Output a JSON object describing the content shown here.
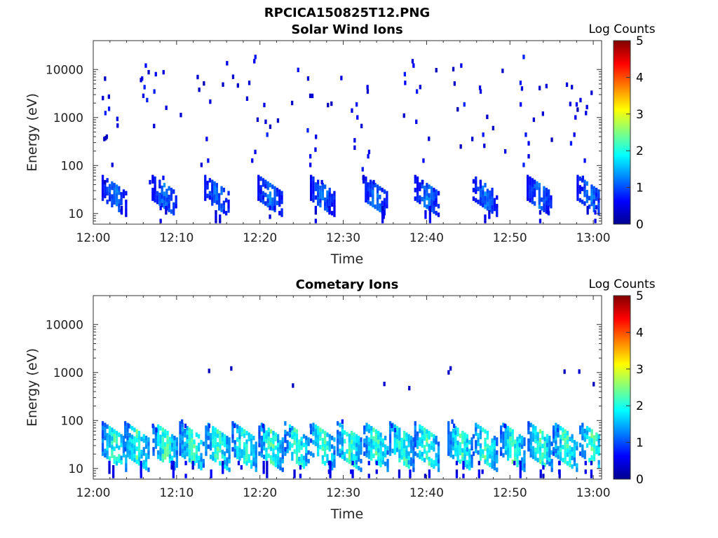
{
  "header": {
    "title": "RPCICA150825T12.PNG"
  },
  "colors": {
    "colormap": [
      "#00008f",
      "#0000ff",
      "#0080ff",
      "#00ffff",
      "#80ff80",
      "#ffff00",
      "#ff8000",
      "#ff0000",
      "#800000"
    ]
  },
  "chart_data": [
    {
      "type": "heatmap",
      "title": "Solar Wind Ions",
      "xlabel": "Time",
      "ylabel": "Energy (eV)",
      "y_scale": "log",
      "x_range": [
        "12:00",
        "13:01"
      ],
      "ylim": [
        6,
        40000
      ],
      "x_ticks": [
        "12:00",
        "12:10",
        "12:20",
        "12:30",
        "12:40",
        "12:50",
        "13:00"
      ],
      "y_ticks": [
        "10",
        "100",
        "1000",
        "10000"
      ],
      "colorbar": {
        "label": "Log Counts",
        "ticks": [
          "0",
          "1",
          "2",
          "3",
          "4",
          "5"
        ],
        "range": [
          0,
          5
        ]
      },
      "sweep_minutes": [
        2.5,
        8.5,
        14.8,
        21.2,
        27.5,
        33.8,
        40.0,
        47.0,
        53.5,
        59.5
      ],
      "core_energy_ev": [
        15,
        50
      ],
      "peak_log_counts": 1.3,
      "max_energy_ev": 35000
    },
    {
      "type": "heatmap",
      "title": "Cometary Ions",
      "xlabel": "Time",
      "ylabel": "Energy (eV)",
      "y_scale": "log",
      "x_range": [
        "12:00",
        "13:01"
      ],
      "ylim": [
        6,
        40000
      ],
      "x_ticks": [
        "12:00",
        "12:10",
        "12:20",
        "12:30",
        "12:40",
        "12:50",
        "13:00"
      ],
      "y_ticks": [
        "10",
        "100",
        "1000",
        "10000"
      ],
      "colorbar": {
        "label": "Log Counts",
        "ticks": [
          "0",
          "1",
          "2",
          "3",
          "4",
          "5"
        ],
        "range": [
          0,
          5
        ]
      },
      "sweep_minutes": [
        2.5,
        5.2,
        8.6,
        11.8,
        14.9,
        18.1,
        21.3,
        24.4,
        27.5,
        30.7,
        33.9,
        37.0,
        40.0,
        44.0,
        47.0,
        50.3,
        53.6,
        56.6,
        59.8
      ],
      "core_energy_ev": [
        15,
        70
      ],
      "peak_log_counts": 2.4,
      "max_energy_ev": 1100
    }
  ]
}
